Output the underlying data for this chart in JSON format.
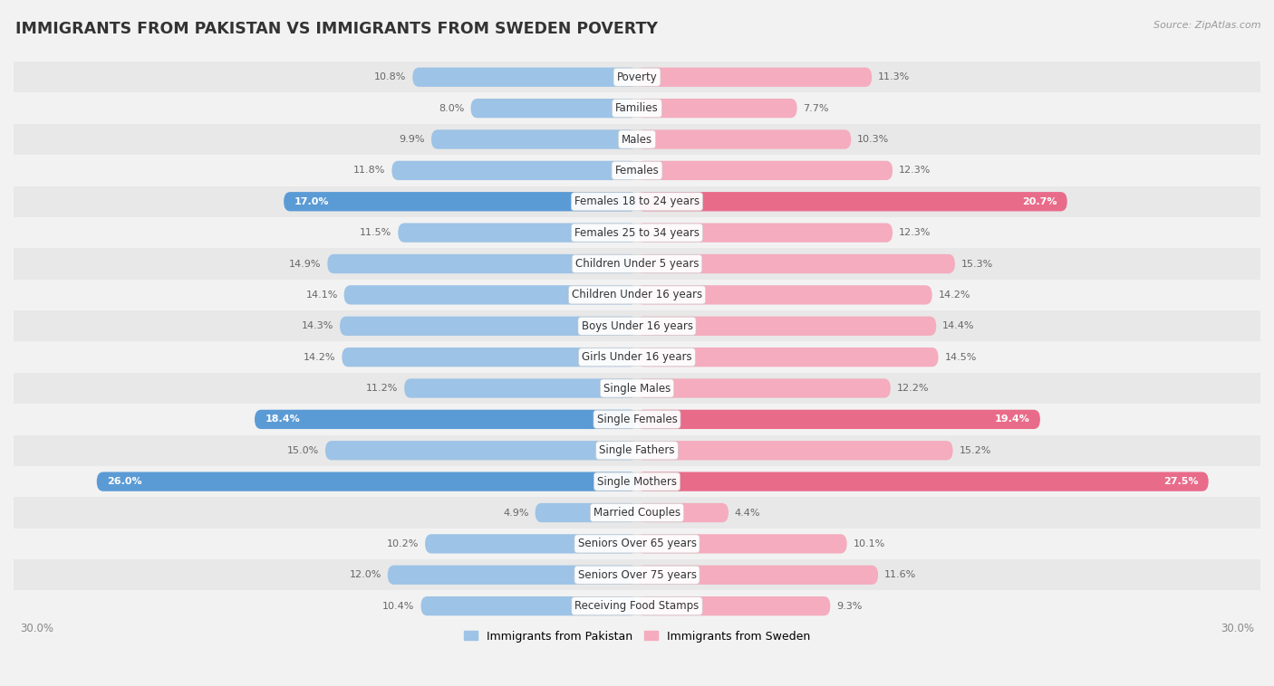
{
  "title": "IMMIGRANTS FROM PAKISTAN VS IMMIGRANTS FROM SWEDEN POVERTY",
  "source": "Source: ZipAtlas.com",
  "categories": [
    "Poverty",
    "Families",
    "Males",
    "Females",
    "Females 18 to 24 years",
    "Females 25 to 34 years",
    "Children Under 5 years",
    "Children Under 16 years",
    "Boys Under 16 years",
    "Girls Under 16 years",
    "Single Males",
    "Single Females",
    "Single Fathers",
    "Single Mothers",
    "Married Couples",
    "Seniors Over 65 years",
    "Seniors Over 75 years",
    "Receiving Food Stamps"
  ],
  "pakistan_values": [
    10.8,
    8.0,
    9.9,
    11.8,
    17.0,
    11.5,
    14.9,
    14.1,
    14.3,
    14.2,
    11.2,
    18.4,
    15.0,
    26.0,
    4.9,
    10.2,
    12.0,
    10.4
  ],
  "sweden_values": [
    11.3,
    7.7,
    10.3,
    12.3,
    20.7,
    12.3,
    15.3,
    14.2,
    14.4,
    14.5,
    12.2,
    19.4,
    15.2,
    27.5,
    4.4,
    10.1,
    11.6,
    9.3
  ],
  "pakistan_color": "#9dc3e6",
  "sweden_color": "#f4acbe",
  "pakistan_highlight_color": "#5b9bd5",
  "sweden_highlight_color": "#e96b8a",
  "highlight_rows": [
    4,
    11,
    13
  ],
  "xlim": 30.0,
  "bar_height": 0.62,
  "background_color": "#f2f2f2",
  "row_odd_color": "#e8e8e8",
  "row_even_color": "#f2f2f2",
  "legend_pakistan": "Immigrants from Pakistan",
  "legend_sweden": "Immigrants from Sweden",
  "label_fontsize": 8.0,
  "category_fontsize": 8.5,
  "title_fontsize": 12.5,
  "source_fontsize": 8.0
}
